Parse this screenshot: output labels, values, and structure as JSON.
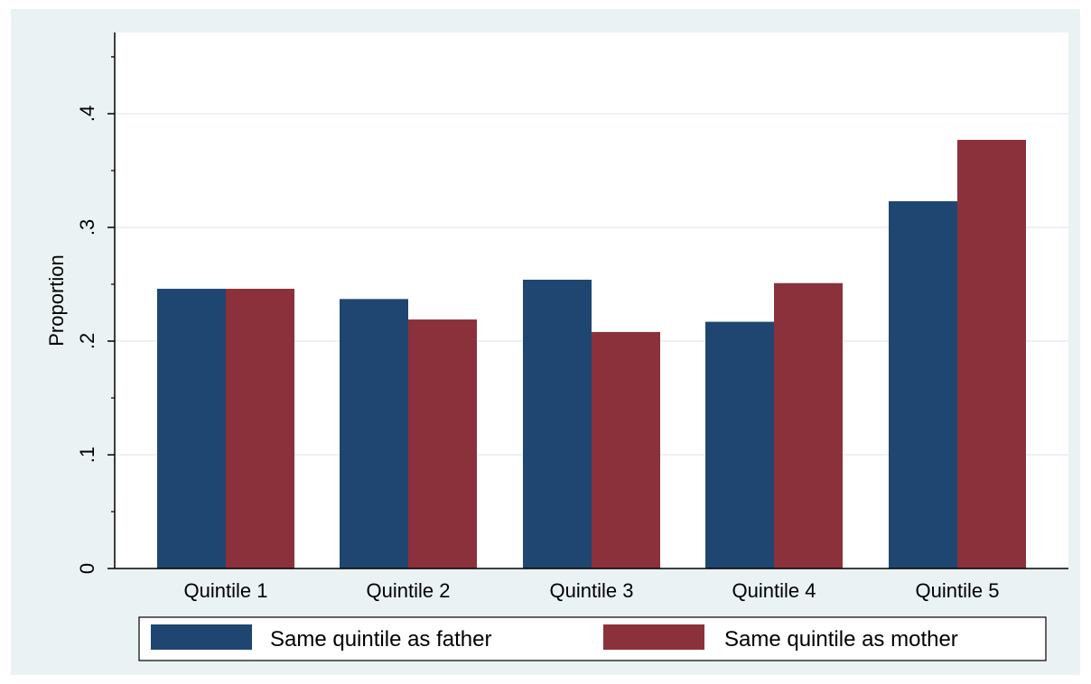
{
  "chart_data": {
    "type": "bar",
    "title": "",
    "xlabel": "",
    "ylabel": "Proportion",
    "ylim": [
      0,
      0.4
    ],
    "yticks": [
      {
        "value": 0,
        "label": "0"
      },
      {
        "value": 0.1,
        "label": ".1"
      },
      {
        "value": 0.2,
        "label": ".2"
      },
      {
        "value": 0.3,
        "label": ".3"
      },
      {
        "value": 0.4,
        "label": ".4"
      }
    ],
    "grid": true,
    "legend_position": "bottom",
    "categories": [
      "Quintile 1",
      "Quintile 2",
      "Quintile 3",
      "Quintile 4",
      "Quintile 5"
    ],
    "series": [
      {
        "name": "Same quintile as father",
        "color": "#1f4670",
        "values": [
          0.246,
          0.237,
          0.254,
          0.217,
          0.323
        ]
      },
      {
        "name": "Same quintile as mother",
        "color": "#8b313b",
        "values": [
          0.246,
          0.219,
          0.208,
          0.251,
          0.377
        ]
      }
    ]
  },
  "colors": {
    "outer_background": "#eaf2f3",
    "plot_background": "#ffffff",
    "gridline": "#e6eef0"
  }
}
